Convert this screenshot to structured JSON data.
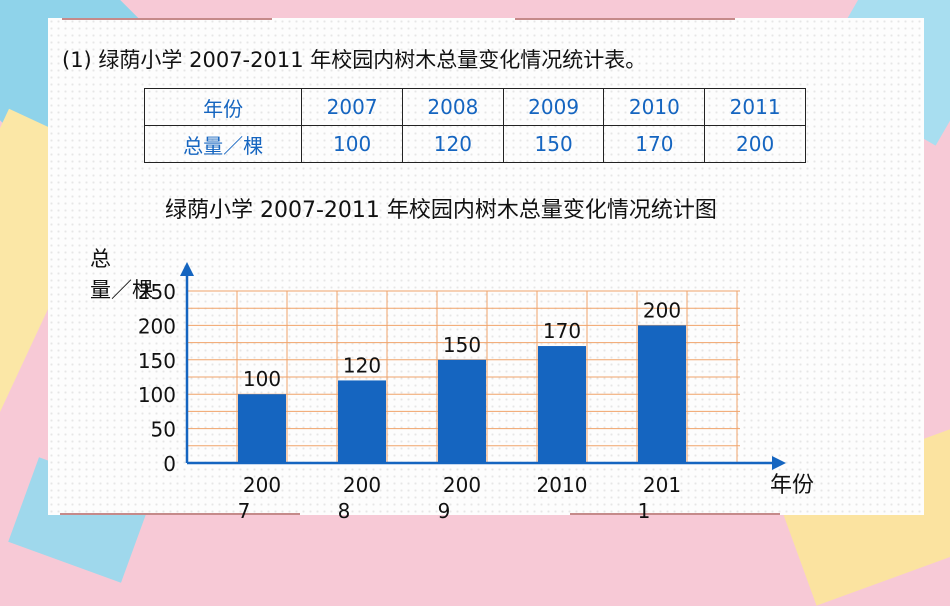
{
  "heading": "(1) 绿荫小学 2007-2011 年校园内树木总量变化情况统计表。",
  "table": {
    "row_headers": [
      "年份",
      "总量／棵"
    ],
    "years": [
      "2007",
      "2008",
      "2009",
      "2010",
      "2011"
    ],
    "totals": [
      "100",
      "120",
      "150",
      "170",
      "200"
    ]
  },
  "chart_data": {
    "type": "bar",
    "title": "绿荫小学 2007-2011 年校园内树木总量变化情况统计图",
    "ylabel": "总量／棵",
    "xlabel": "年份",
    "categories": [
      "2007",
      "2008",
      "2009",
      "2010",
      "2011"
    ],
    "values": [
      100,
      120,
      150,
      170,
      200
    ],
    "ylim": [
      0,
      250
    ],
    "yticks": [
      0,
      50,
      100,
      150,
      200,
      250
    ],
    "grid": true,
    "colors": {
      "bar": "#1565c0",
      "grid": "#f0a36a",
      "axis": "#1565c0"
    }
  }
}
